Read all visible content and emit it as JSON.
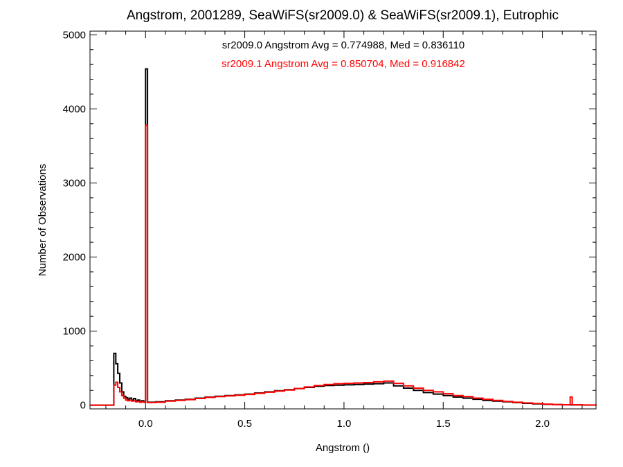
{
  "chart_data": {
    "type": "histogram-step",
    "title": "Angstrom, 2001289, SeaWiFS(sr2009.0) & SeaWiFS(sr2009.1), Eutrophic",
    "xlabel": "Angstrom ()",
    "ylabel": "Number of Observations",
    "xlim": [
      -0.28,
      2.27
    ],
    "ylim": [
      -50,
      5050
    ],
    "xticks": [
      0.0,
      0.5,
      1.0,
      1.5,
      2.0
    ],
    "xtick_labels": [
      "0.0",
      "0.5",
      "1.0",
      "1.5",
      "2.0"
    ],
    "yticks": [
      0,
      1000,
      2000,
      3000,
      4000,
      5000
    ],
    "ytick_labels": [
      "0",
      "1000",
      "2000",
      "3000",
      "4000",
      "5000"
    ],
    "annotations": [
      {
        "text": "sr2009.0 Angstrom Avg = 0.774988, Med = 0.836110",
        "color": "#000000"
      },
      {
        "text": "sr2009.1 Angstrom Avg = 0.850704, Med = 0.916842",
        "color": "#ff0000"
      }
    ],
    "series": [
      {
        "color": "#000000",
        "points": [
          [
            -0.28,
            0
          ],
          [
            -0.16,
            0
          ],
          [
            -0.16,
            700
          ],
          [
            -0.15,
            560
          ],
          [
            -0.14,
            430
          ],
          [
            -0.13,
            300
          ],
          [
            -0.12,
            180
          ],
          [
            -0.11,
            120
          ],
          [
            -0.1,
            100
          ],
          [
            -0.09,
            80
          ],
          [
            -0.08,
            95
          ],
          [
            -0.07,
            70
          ],
          [
            -0.06,
            90
          ],
          [
            -0.05,
            60
          ],
          [
            -0.04,
            70
          ],
          [
            -0.03,
            50
          ],
          [
            -0.02,
            60
          ],
          [
            -0.01,
            50
          ],
          [
            0.0,
            4540
          ],
          [
            0.01,
            40
          ],
          [
            0.05,
            45
          ],
          [
            0.1,
            60
          ],
          [
            0.15,
            70
          ],
          [
            0.2,
            80
          ],
          [
            0.25,
            95
          ],
          [
            0.3,
            110
          ],
          [
            0.35,
            120
          ],
          [
            0.4,
            130
          ],
          [
            0.45,
            140
          ],
          [
            0.5,
            150
          ],
          [
            0.55,
            165
          ],
          [
            0.6,
            180
          ],
          [
            0.65,
            195
          ],
          [
            0.7,
            210
          ],
          [
            0.75,
            225
          ],
          [
            0.8,
            240
          ],
          [
            0.85,
            255
          ],
          [
            0.9,
            265
          ],
          [
            0.95,
            270
          ],
          [
            1.0,
            275
          ],
          [
            1.05,
            280
          ],
          [
            1.1,
            285
          ],
          [
            1.15,
            290
          ],
          [
            1.2,
            300
          ],
          [
            1.25,
            260
          ],
          [
            1.3,
            230
          ],
          [
            1.35,
            200
          ],
          [
            1.4,
            170
          ],
          [
            1.45,
            150
          ],
          [
            1.5,
            130
          ],
          [
            1.55,
            110
          ],
          [
            1.6,
            95
          ],
          [
            1.65,
            80
          ],
          [
            1.7,
            65
          ],
          [
            1.75,
            55
          ],
          [
            1.8,
            45
          ],
          [
            1.85,
            35
          ],
          [
            1.9,
            25
          ],
          [
            1.95,
            18
          ],
          [
            2.0,
            12
          ],
          [
            2.05,
            8
          ],
          [
            2.1,
            5
          ],
          [
            2.14,
            4
          ],
          [
            2.15,
            3
          ],
          [
            2.2,
            1
          ],
          [
            2.27,
            0
          ]
        ]
      },
      {
        "color": "#ff0000",
        "points": [
          [
            -0.28,
            0
          ],
          [
            -0.16,
            0
          ],
          [
            -0.16,
            270
          ],
          [
            -0.15,
            310
          ],
          [
            -0.14,
            240
          ],
          [
            -0.13,
            180
          ],
          [
            -0.12,
            130
          ],
          [
            -0.11,
            95
          ],
          [
            -0.1,
            70
          ],
          [
            -0.09,
            60
          ],
          [
            -0.08,
            70
          ],
          [
            -0.07,
            55
          ],
          [
            -0.06,
            60
          ],
          [
            -0.05,
            45
          ],
          [
            -0.04,
            50
          ],
          [
            -0.03,
            40
          ],
          [
            -0.02,
            45
          ],
          [
            -0.01,
            40
          ],
          [
            0.0,
            3780
          ],
          [
            0.01,
            35
          ],
          [
            0.05,
            40
          ],
          [
            0.1,
            55
          ],
          [
            0.15,
            65
          ],
          [
            0.2,
            75
          ],
          [
            0.25,
            90
          ],
          [
            0.3,
            105
          ],
          [
            0.35,
            115
          ],
          [
            0.4,
            125
          ],
          [
            0.45,
            135
          ],
          [
            0.5,
            145
          ],
          [
            0.55,
            160
          ],
          [
            0.6,
            175
          ],
          [
            0.65,
            190
          ],
          [
            0.7,
            205
          ],
          [
            0.75,
            225
          ],
          [
            0.8,
            245
          ],
          [
            0.85,
            265
          ],
          [
            0.9,
            280
          ],
          [
            0.95,
            290
          ],
          [
            1.0,
            295
          ],
          [
            1.05,
            300
          ],
          [
            1.1,
            305
          ],
          [
            1.15,
            315
          ],
          [
            1.2,
            325
          ],
          [
            1.25,
            295
          ],
          [
            1.3,
            260
          ],
          [
            1.35,
            230
          ],
          [
            1.4,
            200
          ],
          [
            1.45,
            180
          ],
          [
            1.5,
            155
          ],
          [
            1.55,
            130
          ],
          [
            1.6,
            115
          ],
          [
            1.65,
            95
          ],
          [
            1.7,
            80
          ],
          [
            1.75,
            65
          ],
          [
            1.8,
            50
          ],
          [
            1.85,
            40
          ],
          [
            1.9,
            30
          ],
          [
            1.95,
            22
          ],
          [
            2.0,
            14
          ],
          [
            2.05,
            9
          ],
          [
            2.1,
            6
          ],
          [
            2.14,
            110
          ],
          [
            2.15,
            5
          ],
          [
            2.2,
            2
          ],
          [
            2.27,
            0
          ]
        ]
      }
    ]
  }
}
